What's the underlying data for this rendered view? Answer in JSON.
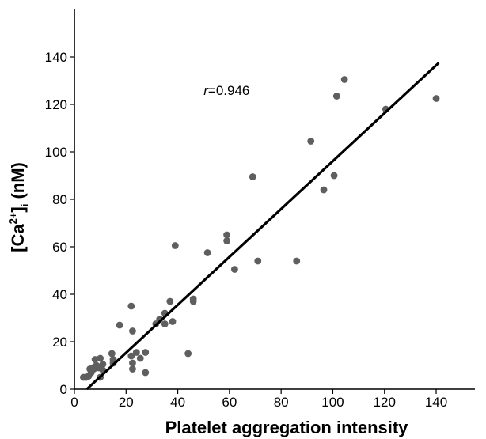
{
  "chart_data": {
    "type": "scatter",
    "title": "",
    "xlabel": "Platelet aggregation intensity",
    "ylabel_parts": {
      "open": "[Ca",
      "sup": "2+",
      "close": "]",
      "sub": "i",
      "unit": " (nM)"
    },
    "xlim": [
      0,
      155
    ],
    "ylim": [
      0,
      160
    ],
    "xticks": [
      "0",
      "20",
      "40",
      "60",
      "80",
      "100",
      "120",
      "140"
    ],
    "yticks": [
      "0",
      "20",
      "40",
      "60",
      "80",
      "100",
      "120",
      "140"
    ],
    "grid": false,
    "annotation": {
      "italic": "r",
      "text": "=0.946",
      "at": [
        50,
        124
      ]
    },
    "colors": {
      "points": "#5f5f5f",
      "line": "#000000"
    },
    "regression": {
      "x": [
        4.8,
        141
      ],
      "y": [
        0,
        137.5
      ]
    },
    "points": [
      [
        3.5,
        5
      ],
      [
        4.5,
        5
      ],
      [
        5.5,
        5.5
      ],
      [
        6,
        8.5
      ],
      [
        6.5,
        7
      ],
      [
        7,
        9
      ],
      [
        7.5,
        8.5
      ],
      [
        8,
        12.5
      ],
      [
        8.5,
        10
      ],
      [
        9.5,
        9
      ],
      [
        10,
        13
      ],
      [
        10,
        5
      ],
      [
        11,
        10.5
      ],
      [
        11,
        8
      ],
      [
        14.5,
        15
      ],
      [
        15,
        12.5
      ],
      [
        15,
        11
      ],
      [
        17.5,
        27
      ],
      [
        22,
        35
      ],
      [
        22,
        14
      ],
      [
        22.5,
        24.5
      ],
      [
        22.5,
        11
      ],
      [
        22.5,
        8.5
      ],
      [
        24,
        15.5
      ],
      [
        25.5,
        13
      ],
      [
        27.5,
        15.5
      ],
      [
        27.5,
        7
      ],
      [
        31.5,
        27.5
      ],
      [
        33,
        29.5
      ],
      [
        35,
        32
      ],
      [
        35,
        27.5
      ],
      [
        37,
        37
      ],
      [
        38,
        28.5
      ],
      [
        39,
        60.5
      ],
      [
        44,
        15
      ],
      [
        46,
        38
      ],
      [
        46,
        37
      ],
      [
        51.5,
        57.5
      ],
      [
        59,
        65
      ],
      [
        59,
        62.5
      ],
      [
        62,
        50.5
      ],
      [
        69,
        89.5
      ],
      [
        71,
        54
      ],
      [
        86,
        54
      ],
      [
        91.5,
        104.5
      ],
      [
        96.5,
        84
      ],
      [
        100.5,
        90
      ],
      [
        101.5,
        123.5
      ],
      [
        104.5,
        130.5
      ],
      [
        120.5,
        118
      ],
      [
        140,
        122.5
      ]
    ]
  }
}
